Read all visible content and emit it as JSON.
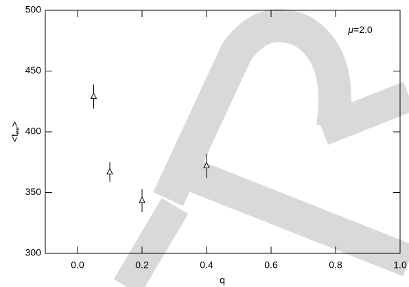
{
  "chart_data": {
    "type": "scatter",
    "x": [
      0.05,
      0.1,
      0.2,
      0.4
    ],
    "series": [
      {
        "name": "mu=2.0",
        "color": "#000000",
        "values": [
          429,
          367,
          343.5,
          372
        ],
        "errors": [
          10,
          8,
          9.5,
          10
        ]
      }
    ],
    "xlim": [
      -0.1,
      1.0
    ],
    "xticks": [
      {
        "value": 0,
        "label": "0.0"
      },
      0.2,
      0.4,
      0.6,
      0.8,
      {
        "value": 1,
        "label": "1.0"
      }
    ],
    "ylim": [
      300,
      500
    ],
    "yticks": [
      300,
      350,
      400,
      450,
      500
    ],
    "xlabel": "q",
    "ylabel_parts": [
      "<t",
      "ee",
      ">"
    ],
    "annotation_symbol": "μ",
    "annotation_text": "=2.0"
  }
}
